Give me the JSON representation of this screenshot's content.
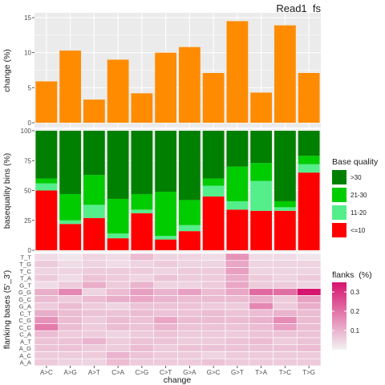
{
  "figure_title": "Read1_fs",
  "colors": {
    "panel_bg": "#ebebeb",
    "grid": "#ffffff",
    "change_bar": "#ff8c00",
    "axis_text": "#4d4d4d",
    "heat_low": "#f2f2f2",
    "heat_high": "#d6136e"
  },
  "chart_data": [
    {
      "type": "bar",
      "ylabel": "change (%)",
      "ylim": [
        0,
        15
      ],
      "yticks": [
        0,
        5,
        10,
        15
      ],
      "categories": [
        "A>C",
        "A>G",
        "A>T",
        "C>A",
        "C>G",
        "C>T",
        "G>A",
        "G>C",
        "G>T",
        "T>A",
        "T>C",
        "T>G"
      ],
      "values": [
        5.9,
        10.3,
        3.3,
        9.0,
        4.2,
        10.0,
        10.8,
        7.1,
        14.5,
        4.3,
        13.9,
        7.1
      ],
      "grid": true
    },
    {
      "type": "bar",
      "stacked": true,
      "ylabel": "basequality bins (%)",
      "ylim": [
        0,
        100
      ],
      "yticks": [
        0,
        25,
        50,
        75,
        100
      ],
      "categories": [
        "A>C",
        "A>G",
        "A>T",
        "C>A",
        "C>G",
        "C>T",
        "G>A",
        "G>C",
        "G>T",
        "T>A",
        "T>C",
        "T>G"
      ],
      "series": [
        {
          "name": "<=10",
          "color": "#ff0000",
          "values": [
            50,
            22,
            27,
            10,
            31,
            9,
            16,
            45,
            34,
            33,
            33,
            65
          ]
        },
        {
          "name": "11-20",
          "color": "#54ee8b",
          "values": [
            6,
            3,
            11,
            4,
            3,
            3,
            5,
            9,
            7,
            25,
            3,
            7
          ]
        },
        {
          "name": "21-30",
          "color": "#00cc00",
          "values": [
            4,
            22,
            25,
            29,
            13,
            37,
            21,
            6,
            29,
            15,
            5,
            7
          ]
        },
        {
          "name": ">30",
          "color": "#008000",
          "values": [
            40,
            53,
            37,
            57,
            53,
            51,
            58,
            40,
            30,
            27,
            59,
            21
          ]
        }
      ],
      "legend": {
        "title": "Base quality",
        "position": "right",
        "order": [
          ">30",
          "21-30",
          "11-20",
          "<=10"
        ]
      }
    },
    {
      "type": "heatmap",
      "ylabel": "flanking bases (5'_3')",
      "xlabel": "change",
      "x": [
        "A>C",
        "A>G",
        "A>T",
        "C>A",
        "C>G",
        "C>T",
        "G>A",
        "G>C",
        "G>T",
        "T>A",
        "T>C",
        "T>G"
      ],
      "y": [
        "T_T",
        "T_G",
        "T_C",
        "T_A",
        "G_T",
        "G_G",
        "G_C",
        "G_A",
        "C_T",
        "C_G",
        "C_C",
        "C_A",
        "A_T",
        "A_G",
        "A_C",
        "A_A"
      ],
      "values": [
        [
          0.02,
          0.01,
          0.03,
          0.02,
          0.06,
          0.03,
          0.03,
          0.02,
          0.12,
          0.02,
          0.02,
          0.01
        ],
        [
          0.04,
          0.02,
          0.03,
          0.02,
          0.03,
          0.04,
          0.03,
          0.03,
          0.09,
          0.03,
          0.03,
          0.03
        ],
        [
          0.03,
          0.03,
          0.04,
          0.04,
          0.04,
          0.03,
          0.04,
          0.04,
          0.1,
          0.03,
          0.03,
          0.03
        ],
        [
          0.04,
          0.02,
          0.05,
          0.04,
          0.03,
          0.05,
          0.04,
          0.04,
          0.08,
          0.04,
          0.03,
          0.04
        ],
        [
          0.02,
          0.04,
          0.08,
          0.04,
          0.07,
          0.03,
          0.03,
          0.04,
          0.09,
          0.04,
          0.04,
          0.03
        ],
        [
          0.08,
          0.14,
          0.03,
          0.06,
          0.1,
          0.07,
          0.1,
          0.06,
          0.09,
          0.19,
          0.18,
          0.35
        ],
        [
          0.06,
          0.04,
          0.06,
          0.08,
          0.09,
          0.07,
          0.06,
          0.06,
          0.06,
          0.08,
          0.04,
          0.1
        ],
        [
          0.04,
          0.06,
          0.04,
          0.03,
          0.05,
          0.05,
          0.05,
          0.04,
          0.04,
          0.14,
          0.04,
          0.08
        ],
        [
          0.08,
          0.06,
          0.05,
          0.05,
          0.06,
          0.05,
          0.05,
          0.06,
          0.05,
          0.06,
          0.07,
          0.06
        ],
        [
          0.12,
          0.06,
          0.04,
          0.06,
          0.05,
          0.09,
          0.06,
          0.06,
          0.06,
          0.07,
          0.13,
          0.06
        ],
        [
          0.16,
          0.06,
          0.04,
          0.06,
          0.05,
          0.07,
          0.05,
          0.05,
          0.05,
          0.06,
          0.1,
          0.06
        ],
        [
          0.06,
          0.04,
          0.04,
          0.03,
          0.04,
          0.05,
          0.04,
          0.04,
          0.04,
          0.05,
          0.05,
          0.05
        ],
        [
          0.05,
          0.05,
          0.07,
          0.04,
          0.05,
          0.05,
          0.04,
          0.04,
          0.05,
          0.06,
          0.04,
          0.05
        ],
        [
          0.05,
          0.05,
          0.04,
          0.04,
          0.06,
          0.04,
          0.05,
          0.05,
          0.05,
          0.05,
          0.05,
          0.06
        ],
        [
          0.04,
          0.04,
          0.04,
          0.07,
          0.05,
          0.04,
          0.04,
          0.03,
          0.04,
          0.04,
          0.04,
          0.04
        ],
        [
          0.04,
          0.03,
          0.03,
          0.06,
          0.04,
          0.04,
          0.04,
          0.05,
          0.04,
          0.04,
          0.04,
          0.04
        ]
      ],
      "colorbar": {
        "title": "flanks  (%)",
        "ticks": [
          0.1,
          0.2,
          0.3
        ],
        "range": [
          0,
          0.35
        ],
        "position": "right"
      }
    }
  ]
}
